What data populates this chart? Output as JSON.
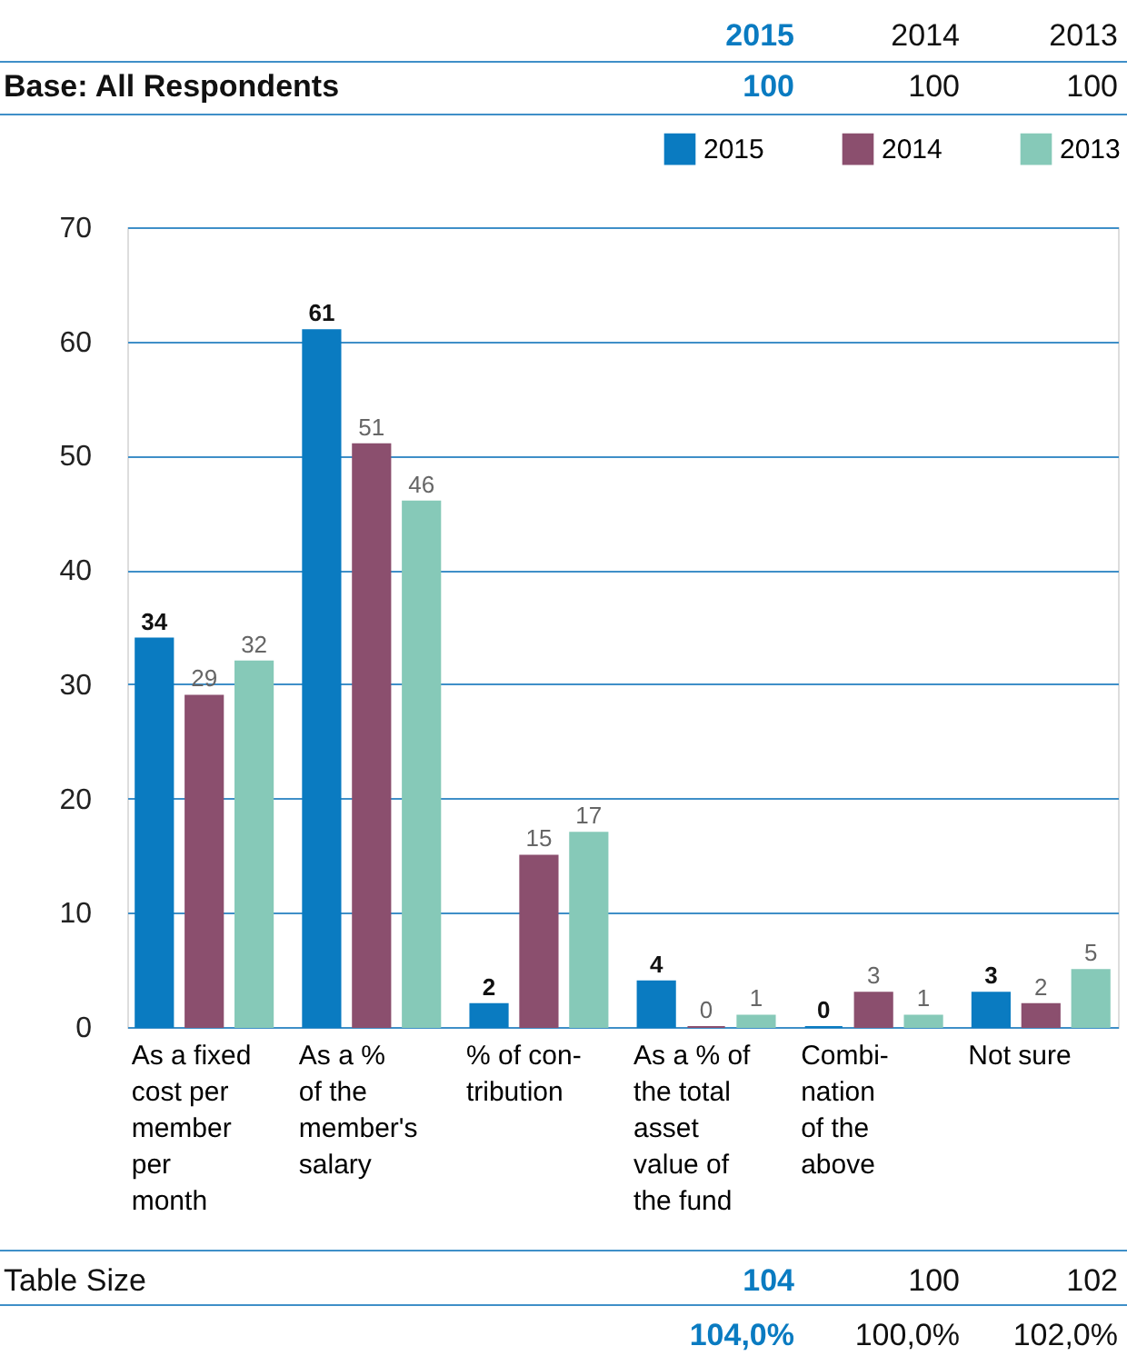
{
  "chart_data": {
    "type": "bar",
    "categories": [
      "As a fixed\ncost per\nmember\nper\nmonth",
      "As a %\nof the\nmember's\nsalary",
      "% of con-\ntribution",
      "As a % of\nthe total\nasset\nvalue of\nthe fund",
      "Combi-\nnation\nof the\nabove",
      "Not sure"
    ],
    "series": [
      {
        "name": "2015",
        "color": "#0a7bc1",
        "values": [
          34,
          61,
          2,
          4,
          0,
          3
        ]
      },
      {
        "name": "2014",
        "color": "#8b4f6e",
        "values": [
          29,
          51,
          15,
          0,
          3,
          2
        ]
      },
      {
        "name": "2013",
        "color": "#86c9b8",
        "values": [
          32,
          46,
          17,
          1,
          1,
          5
        ]
      }
    ],
    "ylim": [
      0,
      70
    ],
    "yticks": [
      0,
      10,
      20,
      30,
      40,
      50,
      60,
      70
    ],
    "grid": "y",
    "legend": "top right",
    "data_labels": true,
    "annotations": [
      "2015",
      "2014",
      "2013",
      "Base: All Respondents",
      "100",
      "100",
      "100",
      "Table Size",
      "104",
      "100",
      "102",
      "104,0%",
      "100,0%",
      "102,0%"
    ]
  }
}
